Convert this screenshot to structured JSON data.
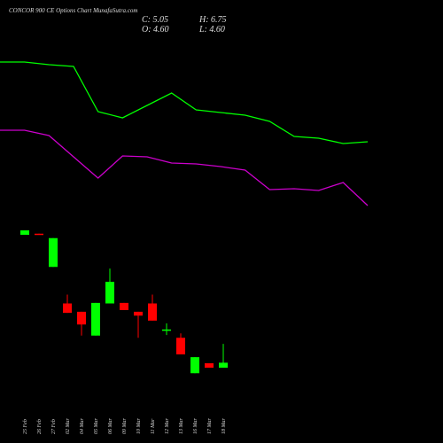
{
  "chart_data": [
    {
      "type": "candlestick",
      "title": "CONCOR 900 CE Options Chart MunafaSutra.com",
      "last_labels": [
        "C: 5.05",
        "H: 6.75",
        "O: 4.60",
        "L: 4.60"
      ],
      "categories": [
        "25 Feb",
        "26 Feb",
        "27 Feb",
        "02 Mar",
        "04 Mar",
        "05 Mar",
        "06 Mar",
        "09 Mar",
        "10 Mar",
        "11 Mar",
        "12 Mar",
        "13 Mar",
        "16 Mar",
        "17 Mar",
        "18 Mar"
      ],
      "open": [
        16.6,
        16.7,
        13.7,
        10.4,
        9.65,
        7.5,
        10.4,
        10.45,
        9.65,
        10.4,
        8.05,
        7.3,
        4.1,
        5.0,
        4.6
      ],
      "high": [
        17.0,
        16.7,
        16.3,
        11.2,
        9.65,
        10.45,
        13.55,
        10.45,
        9.65,
        11.2,
        8.6,
        7.7,
        5.55,
        5.0,
        6.75
      ],
      "low": [
        16.6,
        16.6,
        13.7,
        9.55,
        7.5,
        7.5,
        10.4,
        9.8,
        7.3,
        8.85,
        7.55,
        5.8,
        4.1,
        4.6,
        4.6
      ],
      "close": [
        17.0,
        16.6,
        16.3,
        9.55,
        8.5,
        10.45,
        12.35,
        9.8,
        9.3,
        8.85,
        8.05,
        5.8,
        5.55,
        4.6,
        5.05
      ],
      "up_color": "#00ff00",
      "down_color": "#ff0000",
      "ylim": [
        3.4,
        17.4
      ]
    },
    {
      "type": "line",
      "categories": [
        null,
        null,
        null,
        null,
        null,
        null,
        null,
        null,
        null,
        null,
        null,
        null,
        null,
        null,
        null,
        null
      ],
      "series": [
        {
          "color": "#00ff00",
          "values": [
            90,
            90,
            88.5,
            87.5,
            62,
            58.5,
            65.5,
            72.5,
            63,
            61.5,
            60,
            56.5,
            48,
            47,
            44,
            45
          ]
        },
        {
          "color": "#cc00cc",
          "values": [
            51.5,
            51.5,
            48.5,
            36.5,
            24.5,
            37,
            36.5,
            33,
            32.5,
            31,
            29,
            18,
            18.5,
            17.5,
            22,
            9
          ]
        }
      ],
      "ylim": [
        0,
        100
      ]
    }
  ]
}
